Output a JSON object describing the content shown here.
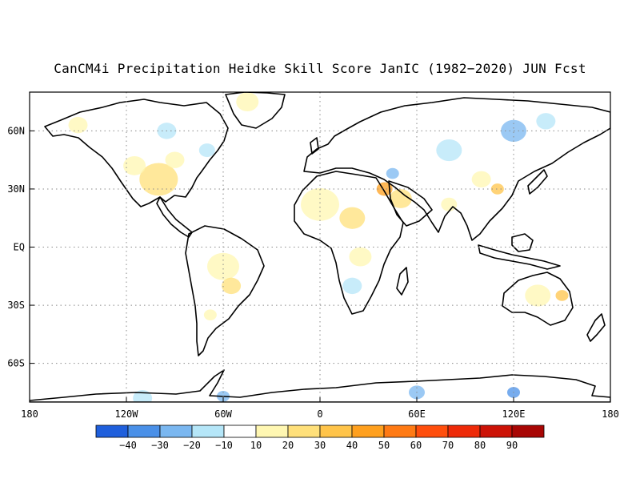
{
  "title": "CanCM4i Precipitation Heidke Skill Score JanIC (1982−2020) JUN Fcst",
  "map": {
    "lon_range": [
      -180,
      180
    ],
    "lat_range": [
      -80,
      80
    ],
    "x_ticks": [
      {
        "lon": -180,
        "label": "180"
      },
      {
        "lon": -120,
        "label": "120W"
      },
      {
        "lon": -60,
        "label": "60W"
      },
      {
        "lon": 0,
        "label": "0"
      },
      {
        "lon": 60,
        "label": "60E"
      },
      {
        "lon": 120,
        "label": "120E"
      },
      {
        "lon": 180,
        "label": "180"
      }
    ],
    "y_ticks": [
      {
        "lat": 60,
        "label": "60N"
      },
      {
        "lat": 30,
        "label": "30N"
      },
      {
        "lat": 0,
        "label": "EQ"
      },
      {
        "lat": -30,
        "label": "30S"
      },
      {
        "lat": -60,
        "label": "60S"
      }
    ],
    "gridlines": true,
    "gridline_style": "dotted"
  },
  "colorbar": {
    "colors": [
      "#1f5fdc",
      "#4a90e8",
      "#7ab7f0",
      "#b5e6f8",
      "#ffffff",
      "#fff7b2",
      "#ffe07a",
      "#ffc44a",
      "#ffa01e",
      "#ff7a14",
      "#ff4e0c",
      "#ee2a08",
      "#cc1206",
      "#a80604"
    ],
    "labels": [
      "−40",
      "−30",
      "−20",
      "−10",
      "10",
      "20",
      "30",
      "40",
      "50",
      "60",
      "70",
      "80",
      "90"
    ]
  },
  "skill_blobs": [
    {
      "lon": -100,
      "lat": 35,
      "r": 12,
      "c": 6
    },
    {
      "lon": -115,
      "lat": 42,
      "r": 7,
      "c": 5
    },
    {
      "lon": -90,
      "lat": 45,
      "r": 6,
      "c": 5
    },
    {
      "lon": -150,
      "lat": 63,
      "r": 6,
      "c": 5
    },
    {
      "lon": -95,
      "lat": 60,
      "r": 6,
      "c": 3
    },
    {
      "lon": -70,
      "lat": 50,
      "r": 5,
      "c": 3
    },
    {
      "lon": -45,
      "lat": 75,
      "r": 7,
      "c": 5
    },
    {
      "lon": -60,
      "lat": -10,
      "r": 10,
      "c": 5
    },
    {
      "lon": -55,
      "lat": -20,
      "r": 6,
      "c": 6
    },
    {
      "lon": -68,
      "lat": -35,
      "r": 4,
      "c": 5
    },
    {
      "lon": 0,
      "lat": 22,
      "r": 12,
      "c": 5
    },
    {
      "lon": 20,
      "lat": 15,
      "r": 8,
      "c": 6
    },
    {
      "lon": 25,
      "lat": -5,
      "r": 7,
      "c": 5
    },
    {
      "lon": 20,
      "lat": -20,
      "r": 6,
      "c": 3
    },
    {
      "lon": 40,
      "lat": 30,
      "r": 5,
      "c": 8
    },
    {
      "lon": 50,
      "lat": 25,
      "r": 7,
      "c": 6
    },
    {
      "lon": 45,
      "lat": 38,
      "r": 4,
      "c": 2
    },
    {
      "lon": 80,
      "lat": 50,
      "r": 8,
      "c": 3
    },
    {
      "lon": 120,
      "lat": 60,
      "r": 8,
      "c": 2
    },
    {
      "lon": 140,
      "lat": 65,
      "r": 6,
      "c": 3
    },
    {
      "lon": 100,
      "lat": 35,
      "r": 6,
      "c": 5
    },
    {
      "lon": 110,
      "lat": 30,
      "r": 4,
      "c": 7
    },
    {
      "lon": 80,
      "lat": 22,
      "r": 5,
      "c": 5
    },
    {
      "lon": 135,
      "lat": -25,
      "r": 8,
      "c": 5
    },
    {
      "lon": 150,
      "lat": -25,
      "r": 4,
      "c": 7
    },
    {
      "lon": 120,
      "lat": -75,
      "r": 4,
      "c": 1
    },
    {
      "lon": 60,
      "lat": -75,
      "r": 5,
      "c": 2
    },
    {
      "lon": -110,
      "lat": -78,
      "r": 6,
      "c": 3
    },
    {
      "lon": -60,
      "lat": -77,
      "r": 4,
      "c": 2
    }
  ]
}
